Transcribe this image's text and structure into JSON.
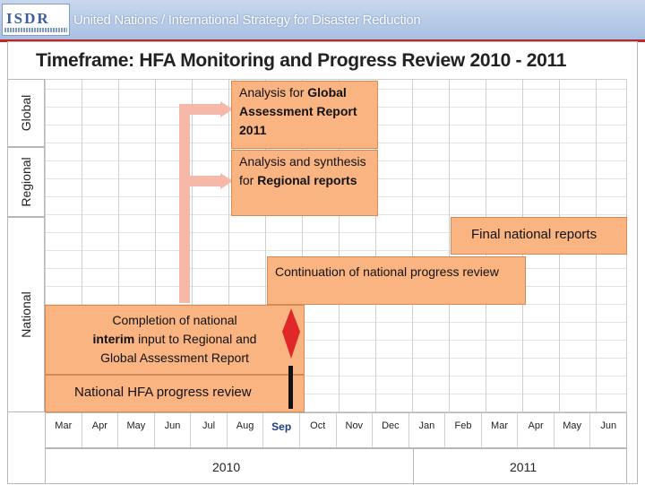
{
  "header": {
    "logo_text": "ISDR",
    "title": "United Nations / International Strategy for Disaster Reduction"
  },
  "slide": {
    "title": "Timeframe: HFA Monitoring and Progress Review 2010 - 2011",
    "rows": [
      "Global",
      "Regional",
      "National"
    ]
  },
  "activities": {
    "global_line1": "Analysis for ",
    "global_bold": "Global Assessment Report 2011",
    "regional_line": "Analysis and synthesis for ",
    "regional_bold": "Regional reports",
    "final_national": "Final national reports",
    "continuation": "Continuation of national progress review",
    "completion_a": "Completion of national",
    "completion_b_bold": "interim",
    "completion_b": " input to Regional  and",
    "completion_c": "Global Assessment  Report",
    "national_hfa": "National HFA progress review"
  },
  "timeline": {
    "months": [
      "Mar",
      "Apr",
      "May",
      "Jun",
      "Jul",
      "Aug",
      "Sep",
      "Oct",
      "Nov",
      "Dec",
      "Jan",
      "Feb",
      "Mar",
      "Apr",
      "May",
      "Jun"
    ],
    "highlight_month": "Sep",
    "years": [
      "2010",
      "2011"
    ]
  },
  "colors": {
    "activity": "#f9b482",
    "arrow": "#f6b8a8",
    "milestone": "#e02828",
    "banner": "#a9c0e2"
  }
}
